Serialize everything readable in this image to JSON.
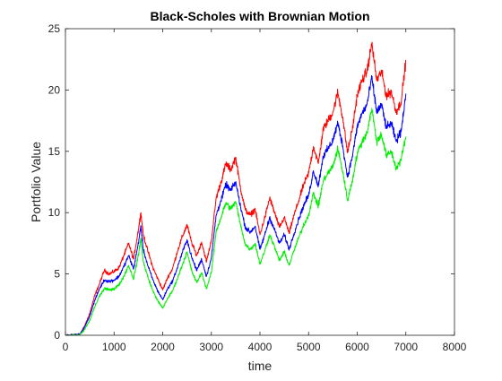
{
  "chart_data": {
    "type": "line",
    "title": "Black-Scholes with Brownian Motion",
    "xlabel": "time",
    "ylabel": "Portfolio Value",
    "xlim": [
      0,
      8000
    ],
    "ylim": [
      0,
      25
    ],
    "xticks": [
      0,
      1000,
      2000,
      3000,
      4000,
      5000,
      6000,
      7000,
      8000
    ],
    "yticks": [
      0,
      5,
      10,
      15,
      20,
      25
    ],
    "grid": false,
    "legend": "none",
    "series": [
      {
        "color": "#ff0000",
        "x": [
          0,
          300,
          400,
          500,
          600,
          700,
          800,
          900,
          1000,
          1100,
          1200,
          1300,
          1400,
          1500,
          1550,
          1600,
          1700,
          1800,
          1900,
          2000,
          2100,
          2200,
          2300,
          2400,
          2500,
          2600,
          2700,
          2800,
          2900,
          3000,
          3100,
          3200,
          3300,
          3400,
          3500,
          3600,
          3700,
          3800,
          3900,
          4000,
          4100,
          4200,
          4300,
          4400,
          4500,
          4600,
          4700,
          4800,
          4900,
          5000,
          5100,
          5200,
          5300,
          5400,
          5500,
          5600,
          5700,
          5800,
          5900,
          6000,
          6100,
          6200,
          6300,
          6400,
          6500,
          6600,
          6700,
          6800,
          6900,
          7000
        ],
        "values": [
          0,
          0.1,
          0.8,
          1.8,
          3.2,
          4.2,
          5.3,
          5.0,
          5.2,
          5.5,
          6.5,
          7.5,
          6.2,
          8.6,
          10.0,
          8.2,
          6.8,
          5.5,
          4.6,
          3.7,
          4.7,
          5.4,
          6.8,
          8.0,
          9.0,
          7.5,
          6.5,
          7.6,
          6.0,
          7.7,
          11.2,
          12.5,
          14.0,
          13.5,
          14.5,
          12.0,
          10.2,
          9.8,
          10.3,
          8.2,
          9.6,
          11.2,
          10.0,
          8.8,
          9.6,
          8.3,
          9.8,
          11.0,
          12.3,
          13.2,
          15.4,
          14.0,
          16.8,
          17.5,
          18.2,
          19.8,
          17.8,
          14.9,
          16.8,
          19.6,
          20.8,
          21.5,
          23.8,
          20.8,
          21.5,
          19.5,
          19.9,
          18.2,
          19.0,
          22.4
        ]
      },
      {
        "color": "#0000ff",
        "x": [
          0,
          300,
          400,
          500,
          600,
          700,
          800,
          900,
          1000,
          1100,
          1200,
          1300,
          1400,
          1500,
          1550,
          1600,
          1700,
          1800,
          1900,
          2000,
          2100,
          2200,
          2300,
          2400,
          2500,
          2600,
          2700,
          2800,
          2900,
          3000,
          3100,
          3200,
          3300,
          3400,
          3500,
          3600,
          3700,
          3800,
          3900,
          4000,
          4100,
          4200,
          4300,
          4400,
          4500,
          4600,
          4700,
          4800,
          4900,
          5000,
          5100,
          5200,
          5300,
          5400,
          5500,
          5600,
          5700,
          5800,
          5900,
          6000,
          6100,
          6200,
          6300,
          6400,
          6500,
          6600,
          6700,
          6800,
          6900,
          7000
        ],
        "values": [
          0,
          0.1,
          0.7,
          1.6,
          2.8,
          3.8,
          4.5,
          4.4,
          4.5,
          4.8,
          5.6,
          6.5,
          5.4,
          7.5,
          8.9,
          7.0,
          5.6,
          4.5,
          3.6,
          2.9,
          3.8,
          4.4,
          5.5,
          6.7,
          7.8,
          6.3,
          5.3,
          6.2,
          4.8,
          6.3,
          9.8,
          11.0,
          12.3,
          11.8,
          12.5,
          10.5,
          8.8,
          8.4,
          8.9,
          7.0,
          8.2,
          9.6,
          8.6,
          7.5,
          8.2,
          7.0,
          8.3,
          9.5,
          10.6,
          11.4,
          13.4,
          12.2,
          14.6,
          15.2,
          15.9,
          17.3,
          15.5,
          12.9,
          14.6,
          17.0,
          18.1,
          18.8,
          21.0,
          18.2,
          18.8,
          16.9,
          17.3,
          15.8,
          16.6,
          19.7
        ]
      },
      {
        "color": "#00ee00",
        "x": [
          0,
          300,
          400,
          500,
          600,
          700,
          800,
          900,
          1000,
          1100,
          1200,
          1300,
          1400,
          1500,
          1550,
          1600,
          1700,
          1800,
          1900,
          2000,
          2100,
          2200,
          2300,
          2400,
          2500,
          2600,
          2700,
          2800,
          2900,
          3000,
          3100,
          3200,
          3300,
          3400,
          3500,
          3600,
          3700,
          3800,
          3900,
          4000,
          4100,
          4200,
          4300,
          4400,
          4500,
          4600,
          4700,
          4800,
          4900,
          5000,
          5100,
          5200,
          5300,
          5400,
          5500,
          5600,
          5700,
          5800,
          5900,
          6000,
          6100,
          6200,
          6300,
          6400,
          6500,
          6600,
          6700,
          6800,
          6900,
          7000
        ],
        "values": [
          0,
          0.05,
          0.5,
          1.2,
          2.3,
          3.2,
          3.8,
          3.7,
          3.8,
          4.1,
          4.8,
          5.7,
          4.6,
          6.5,
          7.9,
          6.0,
          4.7,
          3.6,
          2.8,
          2.2,
          3.0,
          3.6,
          4.6,
          5.7,
          6.8,
          5.2,
          4.3,
          5.1,
          3.8,
          5.1,
          8.5,
          9.6,
          10.8,
          10.3,
          10.9,
          9.0,
          7.4,
          7.0,
          7.5,
          5.8,
          6.9,
          8.2,
          7.2,
          6.1,
          6.8,
          5.7,
          6.9,
          8.0,
          9.0,
          9.8,
          11.6,
          10.5,
          12.6,
          13.2,
          13.8,
          15.2,
          13.4,
          11.0,
          12.6,
          14.8,
          15.8,
          16.5,
          18.5,
          15.8,
          16.4,
          14.6,
          15.0,
          13.6,
          14.3,
          16.2
        ]
      }
    ]
  }
}
